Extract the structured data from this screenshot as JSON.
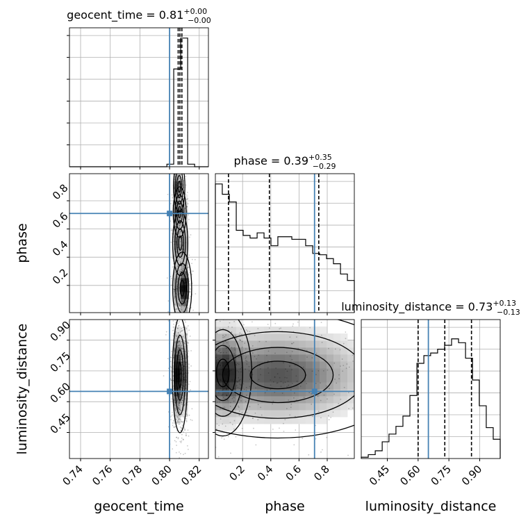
{
  "chart_data": {
    "type": "corner",
    "parameters": [
      "geocent_time",
      "phase",
      "luminosity_distance"
    ],
    "truth_color": "#4682b4",
    "truths": {
      "geocent_time": 0.8,
      "phase": 0.71,
      "luminosity_distance": 0.65
    },
    "axis_ranges": {
      "geocent_time": [
        0.7325,
        0.8262
      ],
      "phase": [
        0.007,
        0.992
      ],
      "luminosity_distance": [
        0.323,
        1.0
      ]
    },
    "grid": true,
    "axis_labels": {
      "x": [
        "geocent_time",
        "phase",
        "luminosity_distance"
      ],
      "y": [
        "phase",
        "luminosity_distance"
      ]
    },
    "tick_labels": {
      "geocent_time": [
        "0.74",
        "0.76",
        "0.78",
        "0.80",
        "0.82"
      ],
      "phase": [
        "0.2",
        "0.4",
        "0.6",
        "0.8"
      ],
      "luminosity_distance": [
        "0.45",
        "0.60",
        "0.75",
        "0.90"
      ]
    },
    "tick_values": {
      "geocent_time": [
        0.74,
        0.76,
        0.78,
        0.8,
        0.82
      ],
      "phase": [
        0.2,
        0.4,
        0.6,
        0.8
      ],
      "luminosity_distance": [
        0.45,
        0.6,
        0.75,
        0.9
      ]
    },
    "titles": [
      {
        "param": "geocent_time",
        "text": "geocent_time = 0.81",
        "sup": "+0.00",
        "sub": "−0.00"
      },
      {
        "param": "phase",
        "text": "phase = 0.39",
        "sup": "+0.35",
        "sub": "−0.29"
      },
      {
        "param": "luminosity_distance",
        "text": "luminosity_distance = 0.73",
        "sup": "+0.13",
        "sub": "−0.13"
      }
    ],
    "quantile_lines": {
      "geocent_time": [
        0.8058,
        0.807,
        0.8083
      ],
      "phase": [
        0.1,
        0.39,
        0.74
      ],
      "luminosity_distance": [
        0.6,
        0.73,
        0.86
      ]
    },
    "histograms": {
      "geocent_time": {
        "edges": [
          0.7325,
          0.7372,
          0.7419,
          0.7466,
          0.7513,
          0.756,
          0.7606,
          0.7653,
          0.77,
          0.7747,
          0.7794,
          0.7841,
          0.7888,
          0.7935,
          0.7982,
          0.8028,
          0.8075,
          0.8122,
          0.8169,
          0.8216,
          0.8262
        ],
        "counts": [
          0,
          0,
          0,
          0,
          0,
          0,
          0,
          0,
          0,
          0,
          0,
          0,
          0,
          0,
          0.02,
          0.76,
          1.0,
          0.02,
          0,
          0
        ]
      },
      "phase": {
        "edges": [
          0.007,
          0.056,
          0.106,
          0.155,
          0.204,
          0.253,
          0.303,
          0.352,
          0.401,
          0.45,
          0.5,
          0.549,
          0.598,
          0.647,
          0.697,
          0.746,
          0.795,
          0.844,
          0.894,
          0.943,
          0.992
        ],
        "counts": [
          1.0,
          0.92,
          0.86,
          0.64,
          0.6,
          0.58,
          0.62,
          0.58,
          0.52,
          0.59,
          0.59,
          0.57,
          0.57,
          0.52,
          0.46,
          0.45,
          0.42,
          0.38,
          0.3,
          0.25
        ]
      },
      "luminosity_distance": {
        "edges": [
          0.323,
          0.357,
          0.391,
          0.425,
          0.458,
          0.492,
          0.526,
          0.56,
          0.594,
          0.628,
          0.661,
          0.695,
          0.729,
          0.763,
          0.797,
          0.831,
          0.865,
          0.898,
          0.932,
          0.966,
          1.0
        ],
        "counts": [
          0.01,
          0.03,
          0.06,
          0.13,
          0.19,
          0.25,
          0.33,
          0.49,
          0.74,
          0.8,
          0.82,
          0.85,
          0.88,
          0.93,
          0.9,
          0.78,
          0.61,
          0.41,
          0.24,
          0.15
        ]
      }
    },
    "contour_levels": 4,
    "joint_distributions": [
      {
        "x": "geocent_time",
        "y": "phase",
        "description_components": [
          {
            "mx": 0.8065,
            "my": 0.9,
            "sx": 0.0015,
            "sy": 0.07,
            "w": 0.8
          },
          {
            "mx": 0.8068,
            "my": 0.72,
            "sx": 0.0017,
            "sy": 0.07,
            "w": 0.9
          },
          {
            "mx": 0.8072,
            "my": 0.5,
            "sx": 0.002,
            "sy": 0.09,
            "w": 0.9
          },
          {
            "mx": 0.8085,
            "my": 0.18,
            "sx": 0.0025,
            "sy": 0.1,
            "w": 1.3
          }
        ]
      },
      {
        "x": "geocent_time",
        "y": "luminosity_distance",
        "description_components": [
          {
            "mx": 0.807,
            "my": 0.73,
            "sx": 0.002,
            "sy": 0.11,
            "w": 1.0
          }
        ]
      },
      {
        "x": "phase",
        "y": "luminosity_distance",
        "description_components": [
          {
            "mx": 0.06,
            "my": 0.74,
            "sx": 0.08,
            "sy": 0.12,
            "w": 1.0
          },
          {
            "mx": 0.45,
            "my": 0.73,
            "sx": 0.35,
            "sy": 0.12,
            "w": 1.2
          }
        ]
      }
    ]
  }
}
